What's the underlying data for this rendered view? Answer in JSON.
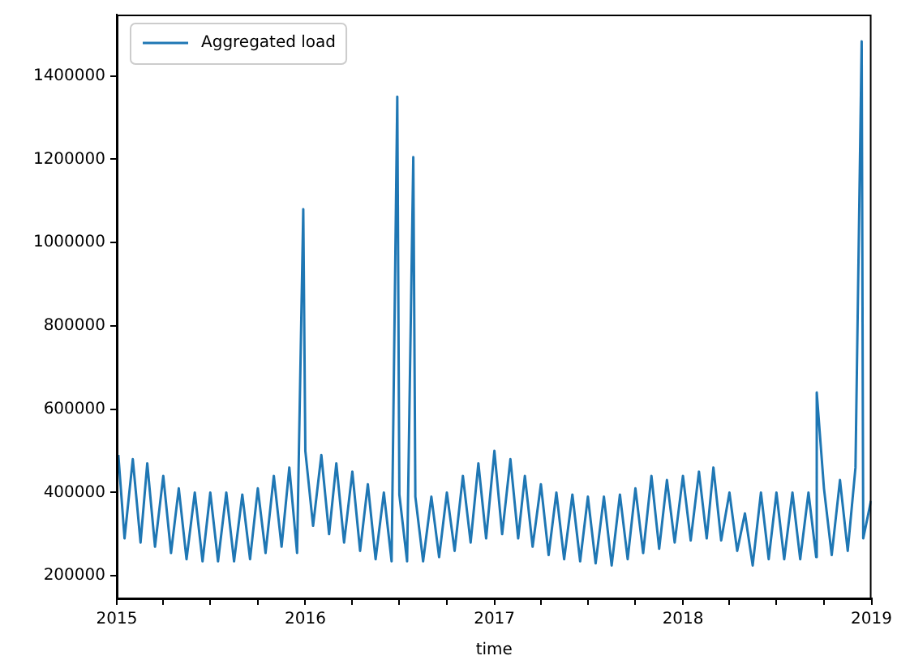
{
  "chart_data": {
    "type": "line",
    "xlabel": "time",
    "legend": "top left",
    "grid": false,
    "marker": "none",
    "line_style": "solid",
    "xlim": [
      "2015",
      "2019"
    ],
    "xticks": [
      "2015",
      {
        "value": "2015-04",
        "label": null
      },
      {
        "value": "2015-07",
        "label": null
      },
      {
        "value": "2015-10",
        "label": null
      },
      "2016",
      {
        "value": "2016-04",
        "label": null
      },
      {
        "value": "2016-07",
        "label": null
      },
      {
        "value": "2016-10",
        "label": null
      },
      "2017",
      {
        "value": "2017-04",
        "label": null
      },
      {
        "value": "2017-07",
        "label": null
      },
      {
        "value": "2017-10",
        "label": null
      },
      "2018",
      {
        "value": "2018-04",
        "label": null
      },
      {
        "value": "2018-07",
        "label": null
      },
      {
        "value": "2018-10",
        "label": null
      },
      "2019"
    ],
    "ylim": [
      146000,
      1547000
    ],
    "yticks": [
      200000,
      400000,
      600000,
      800000,
      1000000,
      1200000,
      1400000
    ],
    "x": [
      "2015-01-04",
      "2015-01-16",
      "2015-02-01",
      "2015-02-16",
      "2015-03-01",
      "2015-03-16",
      "2015-04-01",
      "2015-04-16",
      "2015-05-01",
      "2015-05-16",
      "2015-06-01",
      "2015-06-16",
      "2015-07-01",
      "2015-07-16",
      "2015-08-01",
      "2015-08-16",
      "2015-09-01",
      "2015-09-16",
      "2015-10-01",
      "2015-10-16",
      "2015-11-01",
      "2015-11-16",
      "2015-12-01",
      "2015-12-16",
      "2015-12-28",
      "2016-01-01",
      "2016-01-16",
      "2016-02-01",
      "2016-02-16",
      "2016-03-01",
      "2016-03-16",
      "2016-04-01",
      "2016-04-16",
      "2016-05-01",
      "2016-05-16",
      "2016-06-01",
      "2016-06-16",
      "2016-06-27",
      "2016-07-01",
      "2016-07-16",
      "2016-07-28",
      "2016-08-01",
      "2016-08-16",
      "2016-09-01",
      "2016-09-16",
      "2016-10-01",
      "2016-10-16",
      "2016-11-01",
      "2016-11-16",
      "2016-12-01",
      "2016-12-16",
      "2017-01-01",
      "2017-01-16",
      "2017-02-01",
      "2017-02-16",
      "2017-03-01",
      "2017-03-16",
      "2017-04-01",
      "2017-04-16",
      "2017-05-01",
      "2017-05-16",
      "2017-06-01",
      "2017-06-16",
      "2017-07-01",
      "2017-07-16",
      "2017-08-01",
      "2017-08-16",
      "2017-09-01",
      "2017-09-16",
      "2017-10-01",
      "2017-10-16",
      "2017-11-01",
      "2017-11-16",
      "2017-12-01",
      "2017-12-16",
      "2018-01-01",
      "2018-01-16",
      "2018-02-01",
      "2018-02-16",
      "2018-03-01",
      "2018-03-16",
      "2018-04-01",
      "2018-04-16",
      "2018-05-01",
      "2018-05-16",
      "2018-06-01",
      "2018-06-16",
      "2018-07-01",
      "2018-07-16",
      "2018-08-01",
      "2018-08-16",
      "2018-09-01",
      "2018-09-16",
      "2018-09-17",
      "2018-10-01",
      "2018-10-16",
      "2018-11-01",
      "2018-11-16",
      "2018-12-01",
      "2018-12-13",
      "2018-12-16",
      "2018-12-31"
    ],
    "series": [
      {
        "name": "Aggregated load",
        "color": "#1f77b4",
        "values": [
          490000,
          290000,
          480000,
          280000,
          470000,
          270000,
          440000,
          255000,
          410000,
          240000,
          400000,
          235000,
          400000,
          235000,
          400000,
          235000,
          395000,
          240000,
          410000,
          255000,
          440000,
          270000,
          460000,
          255000,
          1080000,
          500000,
          320000,
          490000,
          300000,
          470000,
          280000,
          450000,
          260000,
          420000,
          240000,
          400000,
          235000,
          1350000,
          395000,
          235000,
          1205000,
          390000,
          235000,
          390000,
          245000,
          400000,
          260000,
          440000,
          280000,
          470000,
          290000,
          500000,
          300000,
          480000,
          290000,
          440000,
          270000,
          420000,
          250000,
          400000,
          240000,
          395000,
          235000,
          390000,
          230000,
          390000,
          225000,
          395000,
          240000,
          410000,
          255000,
          440000,
          265000,
          430000,
          280000,
          440000,
          285000,
          450000,
          290000,
          460000,
          285000,
          400000,
          260000,
          350000,
          225000,
          400000,
          240000,
          400000,
          240000,
          400000,
          240000,
          400000,
          245000,
          640000,
          410000,
          250000,
          430000,
          260000,
          460000,
          1483000,
          290000,
          380000
        ]
      }
    ]
  }
}
